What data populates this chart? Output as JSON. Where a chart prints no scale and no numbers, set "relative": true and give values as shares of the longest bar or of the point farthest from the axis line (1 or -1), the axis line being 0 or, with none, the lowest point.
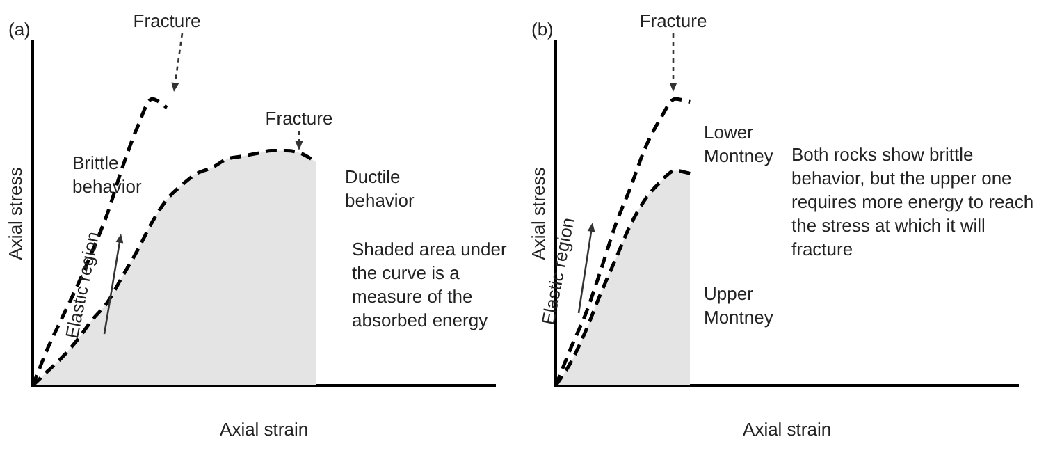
{
  "chart_data": [
    {
      "type": "line",
      "title": "(a)",
      "xlabel": "Axial strain",
      "ylabel": "Axial stress",
      "relative": true,
      "line_style": "dashed",
      "marker": "none",
      "legend": false,
      "grid": false,
      "categories": [
        null,
        null,
        null,
        null,
        null,
        null,
        null,
        null,
        null,
        null,
        null,
        null,
        null,
        null,
        null,
        null,
        null,
        null,
        null,
        null,
        null,
        null,
        null,
        null,
        null,
        null,
        null,
        null,
        null,
        null,
        null,
        null
      ],
      "series": [
        {
          "name": "Brittle behavior",
          "type": "line",
          "color": "#000000",
          "values": [
            0,
            0.13,
            0.24,
            0.35,
            0.47,
            0.6,
            0.76,
            0.9,
            1.0,
            0.97,
            null,
            null,
            null,
            null,
            null,
            null,
            null,
            null,
            null,
            null,
            null,
            null,
            null,
            null,
            null,
            null,
            null,
            null,
            null,
            null,
            null,
            null
          ]
        },
        {
          "name": "Ductile behavior",
          "type": "area",
          "color": "#000000",
          "values": [
            0,
            0.05,
            0.1,
            0.16,
            0.23,
            0.29,
            0.38,
            0.47,
            0.57,
            0.65,
            0.7,
            0.74,
            0.76,
            0.79,
            0.8,
            0.81,
            0.82,
            0.82,
            0.81,
            0.78,
            null,
            null,
            null,
            null,
            null,
            null,
            null,
            null,
            null,
            null,
            null,
            null
          ]
        }
      ],
      "annotations": [
        "Fracture",
        "Fracture",
        "Elastic region",
        "Shaded area under the curve is a measure of the absorbed energy"
      ]
    },
    {
      "type": "line",
      "title": "(b)",
      "xlabel": "Axial strain",
      "ylabel": "Axial stress",
      "relative": true,
      "line_style": "dashed",
      "marker": "none",
      "legend": false,
      "grid": false,
      "categories": [
        null,
        null,
        null,
        null,
        null,
        null,
        null,
        null,
        null,
        null,
        null,
        null,
        null,
        null,
        null,
        null,
        null,
        null,
        null,
        null,
        null,
        null,
        null,
        null,
        null,
        null,
        null,
        null,
        null,
        null,
        null,
        null
      ],
      "series": [
        {
          "name": "Lower Montney",
          "type": "line",
          "color": "#000000",
          "values": [
            0,
            0.13,
            0.25,
            0.4,
            0.56,
            0.69,
            0.83,
            0.93,
            1.0,
            0.99,
            null,
            null,
            null,
            null,
            null,
            null,
            null,
            null,
            null,
            null,
            null,
            null,
            null,
            null,
            null,
            null,
            null,
            null,
            null,
            null,
            null,
            null
          ]
        },
        {
          "name": "Upper Montney",
          "type": "area",
          "color": "#000000",
          "values": [
            0,
            0.08,
            0.19,
            0.32,
            0.44,
            0.56,
            0.65,
            0.71,
            0.75,
            0.74,
            null,
            null,
            null,
            null,
            null,
            null,
            null,
            null,
            null,
            null,
            null,
            null,
            null,
            null,
            null,
            null,
            null,
            null,
            null,
            null,
            null,
            null
          ]
        }
      ],
      "annotations": [
        "Fracture",
        "Elastic region",
        "Both rocks show brittle behavior, but the upper one requires more energy to reach the stress at which it will fracture"
      ]
    }
  ]
}
